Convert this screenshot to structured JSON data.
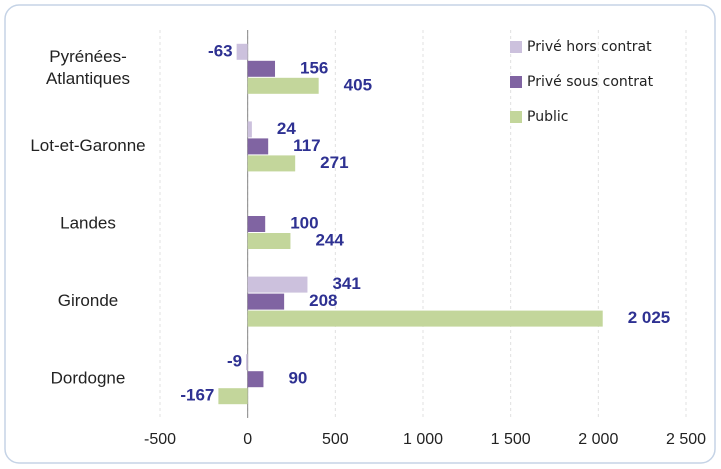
{
  "chart_data": {
    "type": "hbar",
    "categories": [
      "Pyrénées-\nAtlantiques",
      "Lot-et-Garonne",
      "Landes",
      "Gironde",
      "Dordogne"
    ],
    "series": [
      {
        "name": "Privé hors contrat",
        "color": "#ccc1dd",
        "values": [
          -63,
          24,
          null,
          341,
          -9
        ]
      },
      {
        "name": "Privé sous contrat",
        "color": "#8064a2",
        "values": [
          156,
          117,
          100,
          208,
          90
        ]
      },
      {
        "name": "Public",
        "color": "#c3d69b",
        "values": [
          405,
          271,
          244,
          2025,
          -167
        ],
        "value_labels": [
          "405",
          "271",
          "244",
          "2 025",
          "-167"
        ]
      }
    ],
    "xlim": [
      -500,
      2500
    ],
    "xticks": [
      -500,
      0,
      500,
      {
        "value": 1000,
        "label": "1 000"
      },
      {
        "value": 1500,
        "label": "1 500"
      },
      {
        "value": 2000,
        "label": "2 000"
      },
      {
        "value": 2500,
        "label": "2 500"
      }
    ],
    "grid": true,
    "legend": "top-right"
  }
}
